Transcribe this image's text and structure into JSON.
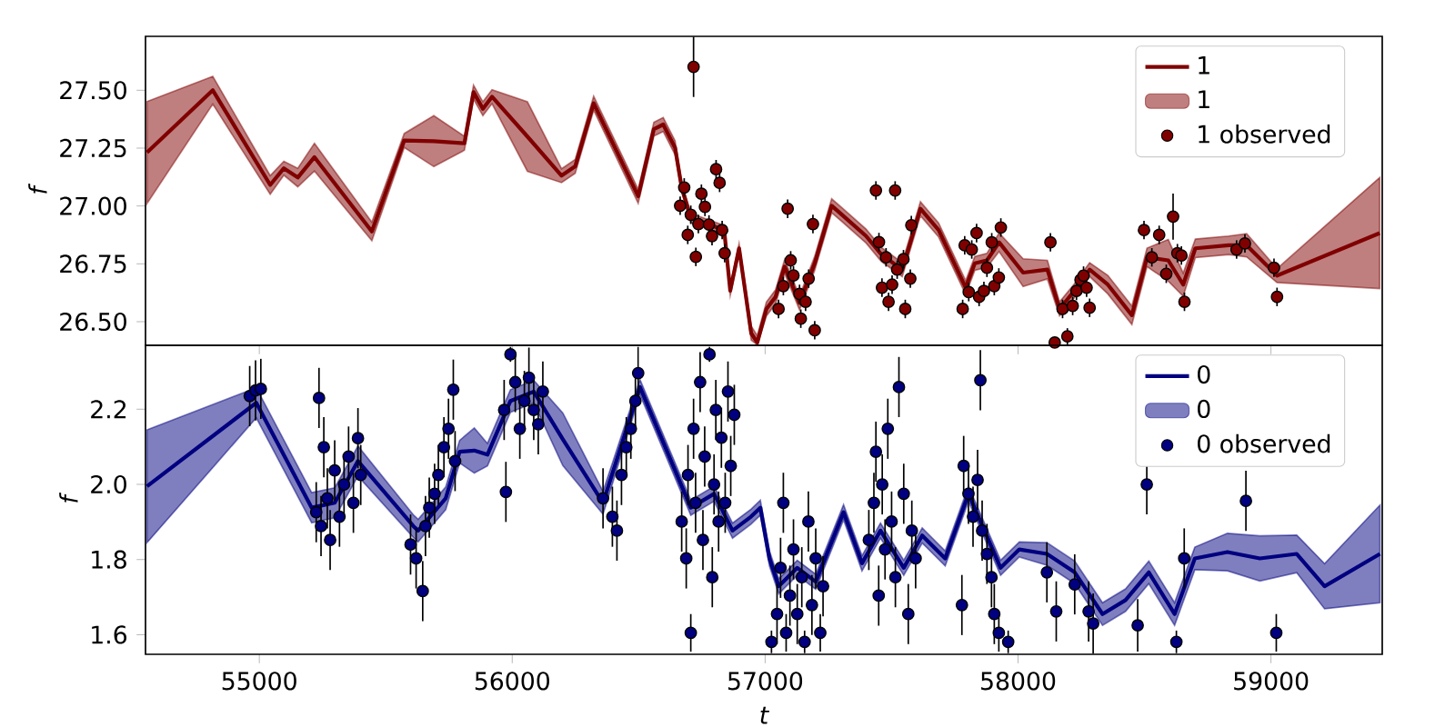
{
  "chart_data": [
    {
      "type": "line",
      "ylabel": "f",
      "legend": "top right",
      "tick_labels": "y",
      "xlim": [
        54550,
        59440
      ],
      "ylim": [
        26.398,
        27.733
      ],
      "xticks": [
        55000,
        56000,
        57000,
        58000,
        59000
      ],
      "yticks": [
        {
          "value": 26.5,
          "label": "26.50"
        },
        {
          "value": 26.75,
          "label": "26.75"
        },
        {
          "value": 27.0,
          "label": "27.00"
        },
        {
          "value": 27.25,
          "label": "27.25"
        },
        {
          "value": 27.5,
          "label": "27.50"
        }
      ],
      "series": [
        {
          "name": "1",
          "color": "#800000",
          "x": [
            54556,
            54816,
            55043,
            55097,
            55152,
            55218,
            55445,
            55573,
            55690,
            55811,
            55847,
            55884,
            55920,
            56060,
            56195,
            56249,
            56322,
            56498,
            56560,
            56597,
            56644,
            56670,
            56706,
            56778,
            56838,
            56862,
            56897,
            56945,
            56969,
            57005,
            57041,
            57077,
            57136,
            57196,
            57263,
            57304,
            57399,
            57459,
            57542,
            57614,
            57686,
            57793,
            57829,
            57877,
            57925,
            58020,
            58116,
            58164,
            58223,
            58283,
            58355,
            58450,
            58510,
            58594,
            58653,
            58701,
            58833,
            58904,
            59024,
            59430
          ],
          "values": [
            27.231,
            27.5,
            27.091,
            27.163,
            27.123,
            27.211,
            26.89,
            27.283,
            27.28,
            27.271,
            27.492,
            27.42,
            27.472,
            27.3,
            27.131,
            27.171,
            27.444,
            27.042,
            27.332,
            27.352,
            27.251,
            27.08,
            26.948,
            26.92,
            26.896,
            26.634,
            26.817,
            26.45,
            26.41,
            26.555,
            26.607,
            26.738,
            26.581,
            26.752,
            27.001,
            26.962,
            26.87,
            26.791,
            26.725,
            26.988,
            26.896,
            26.647,
            26.752,
            26.765,
            26.843,
            26.712,
            26.725,
            26.555,
            26.634,
            26.725,
            26.66,
            26.528,
            26.778,
            26.765,
            26.66,
            26.817,
            26.83,
            26.83,
            26.699,
            26.883
          ],
          "lower": [
            27.011,
            27.44,
            27.051,
            27.133,
            27.083,
            27.151,
            26.85,
            27.253,
            27.17,
            27.241,
            27.462,
            27.39,
            27.442,
            27.15,
            27.101,
            27.141,
            27.414,
            27.012,
            27.302,
            27.322,
            27.221,
            27.06,
            26.928,
            26.9,
            26.876,
            26.614,
            26.797,
            26.42,
            26.4,
            26.525,
            26.577,
            26.708,
            26.551,
            26.722,
            26.971,
            26.932,
            26.84,
            26.761,
            26.695,
            26.958,
            26.866,
            26.617,
            26.722,
            26.735,
            26.803,
            26.652,
            26.685,
            26.525,
            26.604,
            26.695,
            26.62,
            26.488,
            26.738,
            26.675,
            26.61,
            26.777,
            26.79,
            26.78,
            26.669,
            26.643
          ],
          "upper": [
            27.451,
            27.56,
            27.131,
            27.193,
            27.163,
            27.271,
            26.93,
            27.313,
            27.39,
            27.301,
            27.522,
            27.45,
            27.502,
            27.45,
            27.161,
            27.201,
            27.474,
            27.072,
            27.362,
            27.382,
            27.281,
            27.1,
            26.968,
            26.94,
            26.916,
            26.654,
            26.837,
            26.48,
            26.44,
            26.585,
            26.637,
            26.768,
            26.611,
            26.782,
            27.031,
            26.992,
            26.9,
            26.821,
            26.755,
            27.018,
            26.926,
            26.677,
            26.782,
            26.795,
            26.883,
            26.772,
            26.765,
            26.585,
            26.664,
            26.755,
            26.7,
            26.568,
            26.818,
            26.855,
            26.71,
            26.857,
            26.87,
            26.88,
            26.729,
            27.123
          ]
        },
        {
          "type": "scatter",
          "name": "1 observed",
          "color": "#800000",
          "marker": "circle",
          "x": [
            56664,
            56680,
            56694,
            56706,
            56717,
            56726,
            56736,
            56748,
            56762,
            56778,
            56790,
            56806,
            56820,
            56830,
            56840,
            57053,
            57072,
            57089,
            57101,
            57112,
            57136,
            57141,
            57160,
            57172,
            57189,
            57196,
            57438,
            57450,
            57462,
            57478,
            57488,
            57502,
            57514,
            57522,
            57547,
            57554,
            57574,
            57578,
            57781,
            57789,
            57805,
            57817,
            57836,
            57846,
            57865,
            57877,
            57896,
            57906,
            57924,
            57932,
            58128,
            58145,
            58176,
            58195,
            58216,
            58231,
            58247,
            58259,
            58271,
            58283,
            58498,
            58529,
            58558,
            58586,
            58613,
            58630,
            58646,
            58658,
            58864,
            58897,
            59012,
            59024
          ],
          "values": [
            27.001,
            27.08,
            26.875,
            26.962,
            27.601,
            26.78,
            26.922,
            27.053,
            26.996,
            26.92,
            26.87,
            27.159,
            27.1,
            26.896,
            26.796,
            26.555,
            26.654,
            26.988,
            26.765,
            26.7,
            26.62,
            26.513,
            26.586,
            26.686,
            26.922,
            26.463,
            27.067,
            26.844,
            26.647,
            26.778,
            26.586,
            26.66,
            27.067,
            26.725,
            26.77,
            26.555,
            26.686,
            26.917,
            26.555,
            26.83,
            26.628,
            26.812,
            26.883,
            26.607,
            26.633,
            26.733,
            26.843,
            26.654,
            26.691,
            26.907,
            26.843,
            26.41,
            26.555,
            26.437,
            26.568,
            26.633,
            26.681,
            26.699,
            26.647,
            26.56,
            26.896,
            26.778,
            26.875,
            26.707,
            26.954,
            26.796,
            26.786,
            26.586,
            26.812,
            26.838,
            26.733,
            26.607
          ],
          "errors": [
            0.04,
            0.04,
            0.04,
            0.04,
            0.13,
            0.04,
            0.04,
            0.04,
            0.04,
            0.04,
            0.04,
            0.04,
            0.04,
            0.04,
            0.04,
            0.04,
            0.04,
            0.04,
            0.04,
            0.04,
            0.04,
            0.04,
            0.04,
            0.04,
            0.04,
            0.04,
            0.04,
            0.04,
            0.04,
            0.04,
            0.04,
            0.04,
            0.04,
            0.04,
            0.04,
            0.04,
            0.04,
            0.04,
            0.04,
            0.04,
            0.04,
            0.04,
            0.04,
            0.04,
            0.04,
            0.04,
            0.04,
            0.04,
            0.04,
            0.04,
            0.04,
            0.01,
            0.04,
            0.035,
            0.04,
            0.04,
            0.04,
            0.04,
            0.04,
            0.04,
            0.04,
            0.04,
            0.04,
            0.04,
            0.1,
            0.04,
            0.04,
            0.04,
            0.04,
            0.04,
            0.04,
            0.04
          ]
        }
      ]
    },
    {
      "type": "line",
      "xlabel": "t",
      "ylabel": "f",
      "legend": "top right",
      "xlim": [
        54550,
        59440
      ],
      "ylim": [
        1.548,
        2.37
      ],
      "xticks": [
        55000,
        56000,
        57000,
        58000,
        59000
      ],
      "yticks": [
        {
          "value": 1.6,
          "label": "1.6"
        },
        {
          "value": 1.8,
          "label": "1.8"
        },
        {
          "value": 2.0,
          "label": "2.0"
        },
        {
          "value": 2.2,
          "label": "2.2"
        }
      ],
      "series": [
        {
          "name": "0",
          "color": "#000080",
          "x": [
            54556,
            54988,
            55207,
            55298,
            55390,
            55609,
            55628,
            55737,
            55792,
            55850,
            55902,
            55993,
            56085,
            56200,
            56359,
            56505,
            56706,
            56798,
            56871,
            56944,
            56981,
            57017,
            57054,
            57127,
            57200,
            57310,
            57383,
            57456,
            57548,
            57621,
            57712,
            57804,
            57931,
            58005,
            58114,
            58224,
            58334,
            58425,
            58517,
            58619,
            58699,
            58828,
            58956,
            59102,
            59212,
            59431
          ],
          "values": [
            1.995,
            2.217,
            1.938,
            1.951,
            2.062,
            1.889,
            1.877,
            1.963,
            2.087,
            2.09,
            2.079,
            2.222,
            2.247,
            2.12,
            1.951,
            2.259,
            1.938,
            1.975,
            1.877,
            1.914,
            1.938,
            1.803,
            1.729,
            1.778,
            1.741,
            1.926,
            1.79,
            1.877,
            1.778,
            1.864,
            1.803,
            1.975,
            1.778,
            1.827,
            1.815,
            1.766,
            1.655,
            1.692,
            1.766,
            1.655,
            1.803,
            1.82,
            1.803,
            1.815,
            1.729,
            1.815
          ],
          "lower": [
            1.845,
            2.177,
            1.898,
            1.911,
            2.022,
            1.859,
            1.847,
            1.933,
            2.057,
            2.03,
            2.049,
            2.192,
            2.217,
            2.05,
            1.921,
            2.239,
            1.918,
            1.955,
            1.857,
            1.894,
            1.918,
            1.783,
            1.709,
            1.758,
            1.721,
            1.906,
            1.77,
            1.857,
            1.758,
            1.844,
            1.783,
            1.955,
            1.758,
            1.807,
            1.785,
            1.736,
            1.625,
            1.662,
            1.736,
            1.625,
            1.773,
            1.77,
            1.743,
            1.765,
            1.669,
            1.685
          ],
          "upper": [
            2.145,
            2.257,
            1.978,
            1.991,
            2.102,
            1.919,
            1.907,
            1.993,
            2.117,
            2.15,
            2.109,
            2.252,
            2.277,
            2.19,
            1.981,
            2.279,
            1.958,
            1.995,
            1.897,
            1.934,
            1.958,
            1.823,
            1.749,
            1.798,
            1.761,
            1.946,
            1.81,
            1.897,
            1.798,
            1.884,
            1.823,
            1.995,
            1.798,
            1.847,
            1.845,
            1.796,
            1.685,
            1.722,
            1.796,
            1.685,
            1.833,
            1.87,
            1.863,
            1.865,
            1.789,
            1.945
          ]
        },
        {
          "type": "scatter",
          "name": "0 observed",
          "color": "#000080",
          "marker": "circle",
          "x": [
            54962,
            54985,
            55006,
            55225,
            55236,
            55244,
            55255,
            55269,
            55280,
            55298,
            55317,
            55335,
            55353,
            55372,
            55390,
            55401,
            55598,
            55620,
            55646,
            55657,
            55672,
            55693,
            55708,
            55730,
            55748,
            55767,
            55774,
            55968,
            55975,
            55993,
            56012,
            56030,
            56048,
            56066,
            56085,
            56103,
            56121,
            56359,
            56396,
            56414,
            56432,
            56451,
            56469,
            56487,
            56498,
            56670,
            56688,
            56695,
            56706,
            56717,
            56725,
            56743,
            56754,
            56761,
            56780,
            56791,
            56798,
            56805,
            56816,
            56827,
            56842,
            56853,
            56864,
            56878,
            57025,
            57047,
            57061,
            57072,
            57083,
            57098,
            57112,
            57127,
            57145,
            57156,
            57171,
            57185,
            57200,
            57218,
            57229,
            57410,
            57430,
            57438,
            57449,
            57463,
            57474,
            57485,
            57500,
            57515,
            57529,
            57548,
            57566,
            57580,
            57595,
            57778,
            57785,
            57804,
            57822,
            57840,
            57851,
            57858,
            57877,
            57895,
            57906,
            57924,
            57961,
            58114,
            58151,
            58224,
            58279,
            58297,
            58473,
            58509,
            58626,
            58657,
            58901,
            59021
          ],
          "values": [
            2.235,
            2.25,
            2.254,
            1.926,
            2.23,
            1.889,
            2.099,
            1.963,
            1.852,
            2.037,
            1.914,
            2.0,
            2.074,
            1.951,
            2.123,
            2.025,
            1.84,
            1.803,
            1.716,
            1.889,
            1.938,
            1.975,
            2.025,
            2.099,
            2.148,
            2.252,
            2.062,
            2.198,
            1.98,
            2.346,
            2.272,
            2.148,
            2.222,
            2.284,
            2.198,
            2.16,
            2.247,
            1.963,
            1.914,
            1.877,
            2.025,
            2.099,
            2.148,
            2.222,
            2.296,
            1.901,
            1.803,
            2.025,
            1.605,
            2.148,
            1.951,
            2.272,
            1.852,
            2.074,
            2.346,
            1.753,
            2.0,
            2.198,
            1.901,
            2.124,
            1.951,
            2.247,
            2.049,
            2.185,
            1.581,
            1.655,
            1.778,
            1.951,
            1.605,
            1.704,
            1.827,
            1.655,
            1.753,
            1.581,
            1.901,
            1.679,
            1.803,
            1.605,
            1.729,
            1.852,
            1.951,
            2.087,
            1.704,
            2.0,
            1.827,
            2.148,
            1.901,
            1.753,
            2.259,
            1.975,
            1.655,
            1.877,
            1.803,
            1.679,
            2.049,
            1.975,
            1.914,
            2.012,
            2.277,
            1.877,
            1.815,
            1.753,
            1.655,
            1.605,
            1.581,
            1.766,
            1.662,
            1.734,
            1.662,
            1.63,
            1.625,
            2.0,
            1.581,
            1.803,
            1.956,
            1.605
          ],
          "errors": [
            0.08,
            0.08,
            0.08,
            0.08,
            0.08,
            0.08,
            0.08,
            0.08,
            0.08,
            0.08,
            0.08,
            0.08,
            0.08,
            0.08,
            0.08,
            0.08,
            0.08,
            0.08,
            0.08,
            0.08,
            0.08,
            0.08,
            0.08,
            0.08,
            0.08,
            0.08,
            0.08,
            0.08,
            0.08,
            0.02,
            0.08,
            0.08,
            0.08,
            0.08,
            0.08,
            0.08,
            0.08,
            0.08,
            0.08,
            0.08,
            0.08,
            0.08,
            0.08,
            0.08,
            0.07,
            0.08,
            0.08,
            0.08,
            0.05,
            0.08,
            0.08,
            0.08,
            0.08,
            0.08,
            0.02,
            0.08,
            0.08,
            0.08,
            0.08,
            0.08,
            0.08,
            0.08,
            0.08,
            0.08,
            0.03,
            0.08,
            0.08,
            0.08,
            0.05,
            0.08,
            0.08,
            0.08,
            0.08,
            0.03,
            0.08,
            0.08,
            0.08,
            0.05,
            0.08,
            0.08,
            0.08,
            0.08,
            0.08,
            0.08,
            0.08,
            0.08,
            0.08,
            0.08,
            0.08,
            0.08,
            0.08,
            0.08,
            0.08,
            0.08,
            0.08,
            0.08,
            0.08,
            0.08,
            0.08,
            0.08,
            0.08,
            0.08,
            0.08,
            0.05,
            0.03,
            0.08,
            0.08,
            0.08,
            0.08,
            0.08,
            0.07,
            0.08,
            0.03,
            0.08,
            0.08,
            0.05
          ]
        }
      ]
    }
  ]
}
